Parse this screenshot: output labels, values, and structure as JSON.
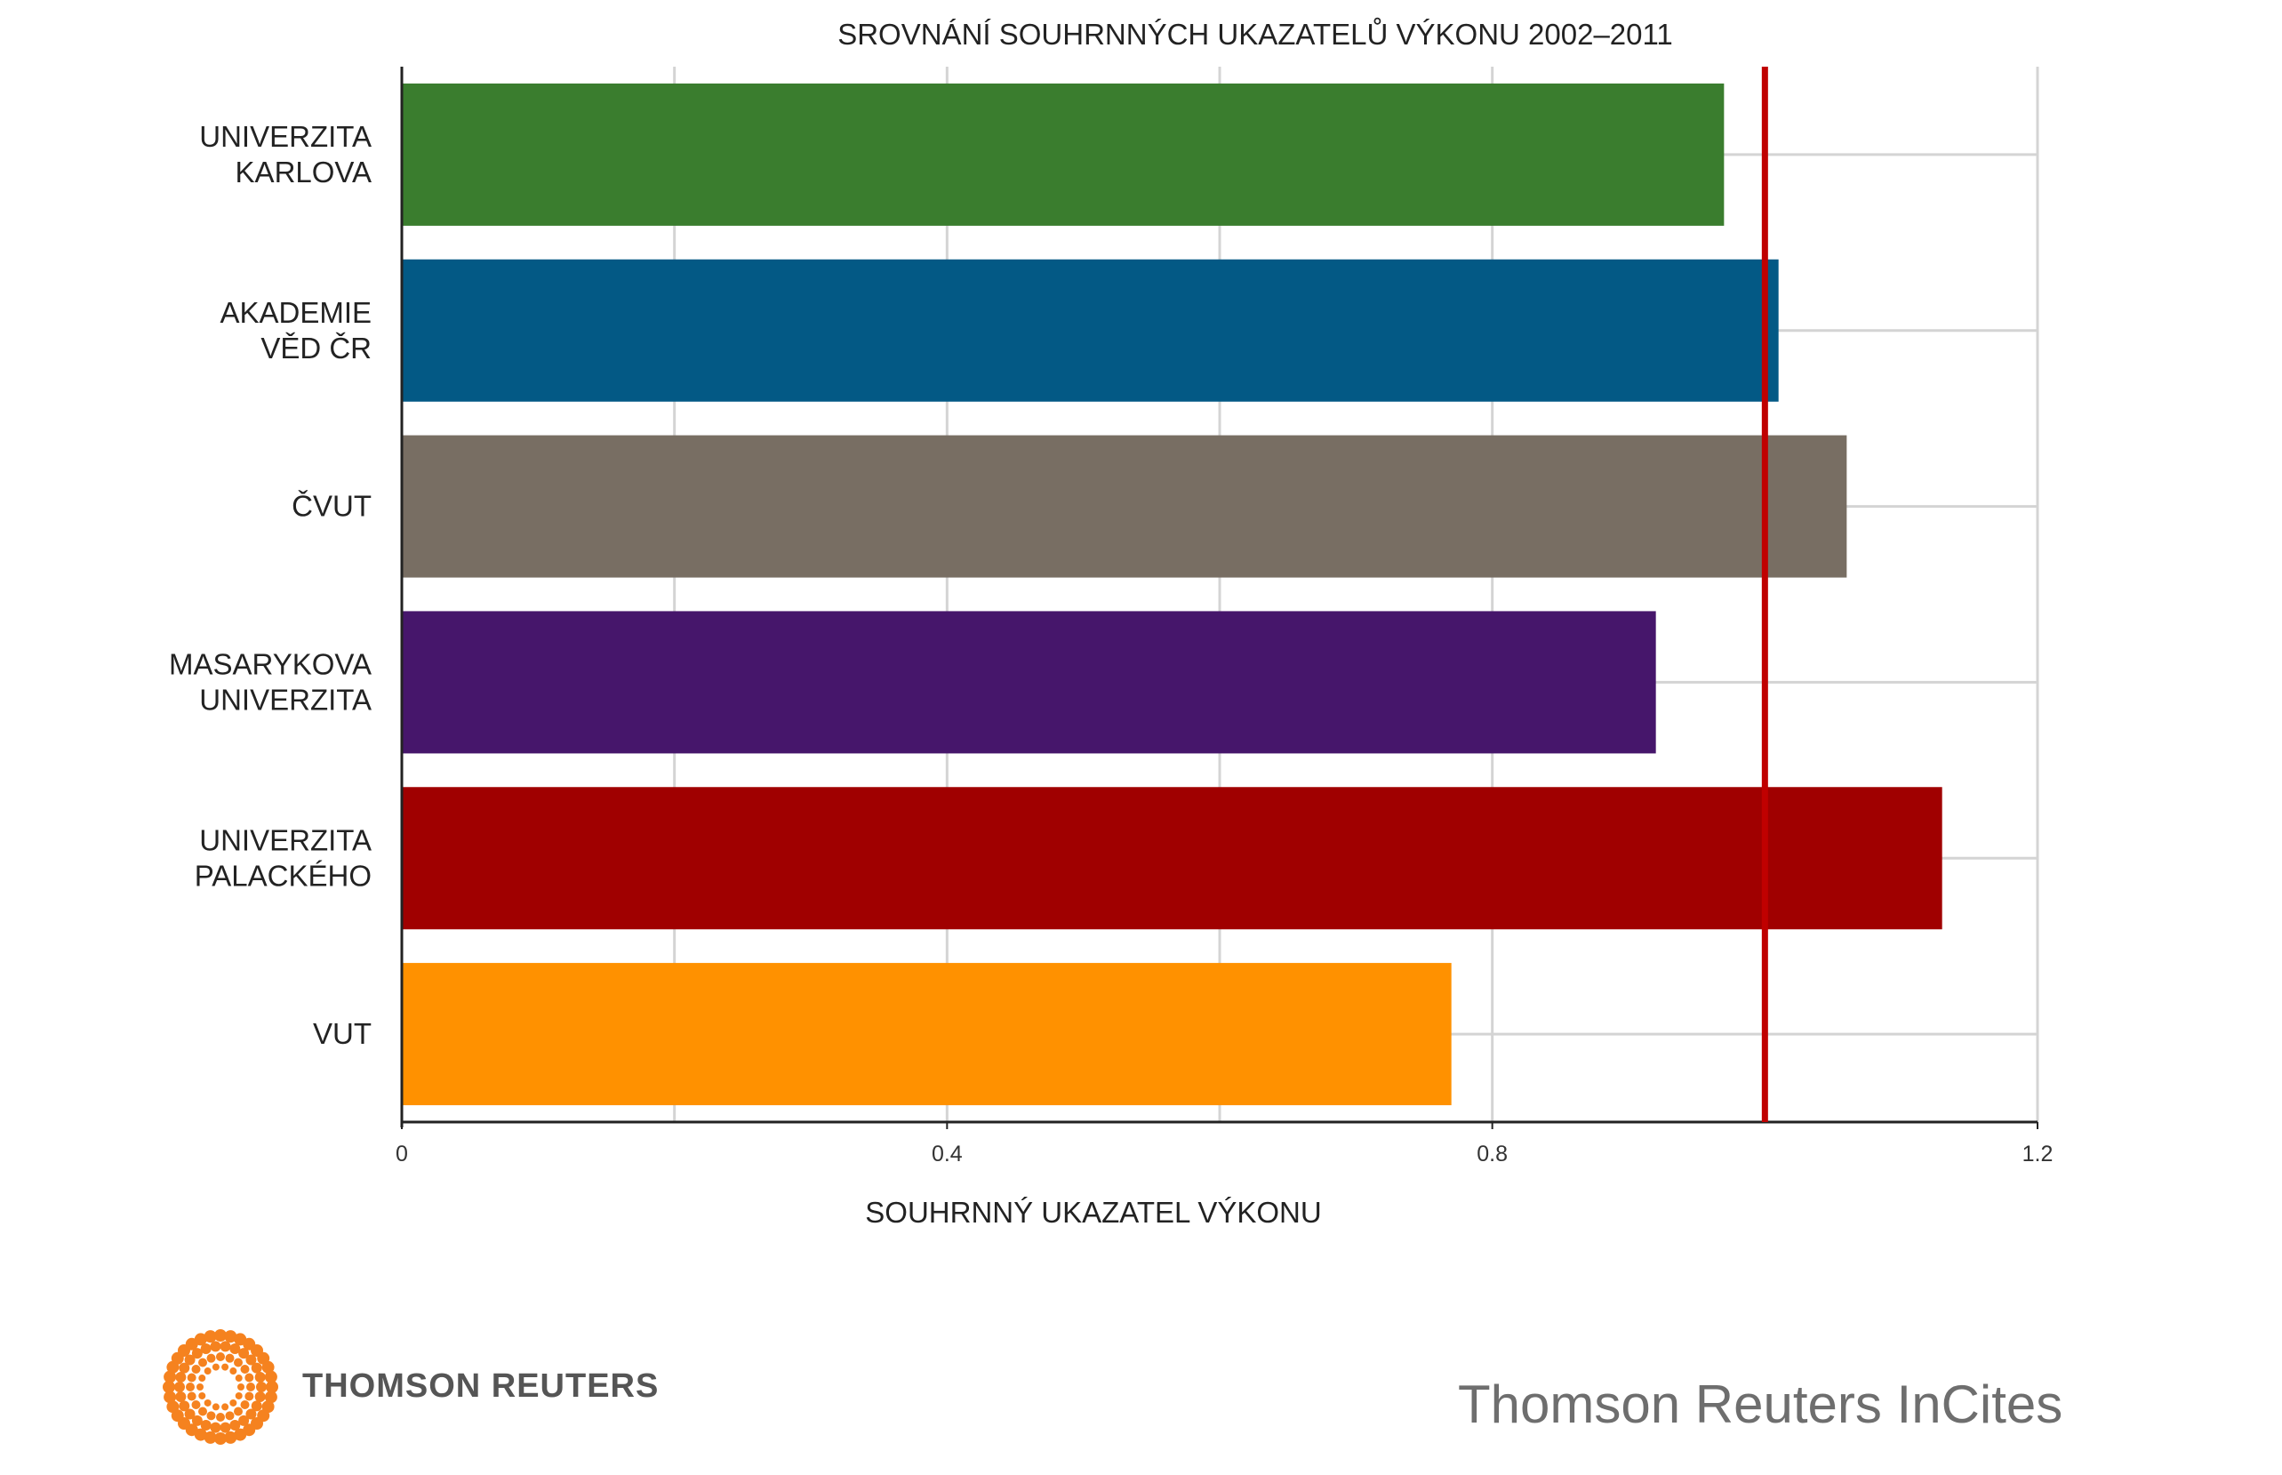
{
  "chart_data": {
    "type": "bar",
    "orientation": "horizontal",
    "title": "SROVNÁNÍ SOUHRNNÝCH UKAZATELŮ VÝKONU 2002–2011",
    "xlabel": "SOUHRNNÝ UKAZATEL VÝKONU",
    "ylabel": "",
    "xlim": [
      0,
      1.2
    ],
    "xticks": [
      "0",
      "0.4",
      "0.8",
      "1.2"
    ],
    "grid": true,
    "reference_line": {
      "value": 1.0,
      "color": "#c00000"
    },
    "categories": [
      [
        "UNIVERZITA",
        "KARLOVA"
      ],
      [
        "AKADEMIE",
        "VĚD ČR"
      ],
      [
        "ČVUT"
      ],
      [
        "MASARYKOVA",
        "UNIVERZITA"
      ],
      [
        "UNIVERZITA",
        "PALACKÉHO"
      ],
      [
        "VUT"
      ]
    ],
    "values": [
      0.97,
      1.01,
      1.06,
      0.92,
      1.13,
      0.77
    ],
    "colors": [
      "#3a7d2e",
      "#035985",
      "#786e63",
      "#46166b",
      "#a00000",
      "#ff9100"
    ]
  },
  "logo": {
    "name": "thomson-reuters-logo",
    "text": "THOMSON REUTERS",
    "color": "#f5821f"
  },
  "source": "Thomson Reuters InCites"
}
